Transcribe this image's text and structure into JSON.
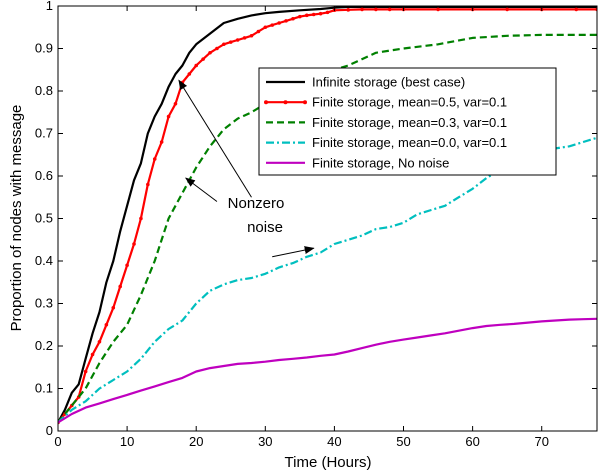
{
  "chart_data": {
    "type": "line",
    "xlabel": "Time (Hours)",
    "ylabel": "Proportion of nodes with message",
    "xlim": [
      0,
      78
    ],
    "ylim": [
      0,
      1
    ],
    "xticks": [
      "0",
      "10",
      "20",
      "30",
      "40",
      "50",
      "60",
      "70"
    ],
    "yticks": [
      "0",
      "0.1",
      "0.2",
      "0.3",
      "0.4",
      "0.5",
      "0.6",
      "0.7",
      "0.8",
      "0.9",
      "1"
    ],
    "grid": false,
    "legend_position": "upper-right-inside",
    "series": [
      {
        "name": "Infinite storage (best case)",
        "color": "#000000",
        "style": "solid",
        "marker": "none",
        "x": [
          0,
          1,
          2,
          3,
          4,
          5,
          6,
          7,
          8,
          9,
          10,
          11,
          12,
          13,
          14,
          15,
          16,
          17,
          18,
          19,
          20,
          22,
          24,
          26,
          28,
          30,
          32,
          35,
          38,
          40,
          42,
          45,
          50,
          55,
          60,
          65,
          70,
          78
        ],
        "y": [
          0.02,
          0.05,
          0.09,
          0.11,
          0.17,
          0.23,
          0.28,
          0.35,
          0.4,
          0.47,
          0.53,
          0.59,
          0.63,
          0.7,
          0.74,
          0.77,
          0.81,
          0.84,
          0.86,
          0.89,
          0.91,
          0.935,
          0.96,
          0.97,
          0.978,
          0.983,
          0.986,
          0.99,
          0.993,
          0.996,
          0.998,
          0.998,
          0.998,
          0.998,
          0.998,
          0.998,
          0.998,
          0.998
        ]
      },
      {
        "name": "Finite storage, mean=0.5, var=0.1",
        "color": "#ff0000",
        "style": "solid",
        "marker": "dot",
        "x": [
          0,
          1,
          2,
          3,
          4,
          5,
          6,
          7,
          8,
          9,
          10,
          11,
          12,
          13,
          14,
          15,
          16,
          17,
          18,
          19,
          20,
          21,
          22,
          23,
          24,
          25,
          26,
          27,
          28,
          29,
          30,
          31,
          32,
          33,
          34,
          35,
          36,
          37,
          38,
          39,
          40,
          42,
          44,
          46,
          48,
          50,
          55,
          60,
          65,
          70,
          75,
          78
        ],
        "y": [
          0.02,
          0.04,
          0.06,
          0.08,
          0.14,
          0.18,
          0.21,
          0.25,
          0.29,
          0.34,
          0.39,
          0.44,
          0.5,
          0.58,
          0.64,
          0.68,
          0.74,
          0.77,
          0.82,
          0.84,
          0.86,
          0.875,
          0.89,
          0.9,
          0.91,
          0.915,
          0.92,
          0.925,
          0.93,
          0.94,
          0.95,
          0.955,
          0.96,
          0.965,
          0.97,
          0.975,
          0.978,
          0.98,
          0.982,
          0.985,
          0.99,
          0.991,
          0.992,
          0.992,
          0.992,
          0.992,
          0.992,
          0.992,
          0.992,
          0.992,
          0.992,
          0.992
        ]
      },
      {
        "name": "Finite storage, mean=0.3, var=0.1",
        "color": "#008000",
        "style": "dashed",
        "marker": "none",
        "x": [
          0,
          2,
          4,
          6,
          8,
          10,
          12,
          14,
          16,
          18,
          20,
          22,
          24,
          26,
          28,
          30,
          32,
          34,
          36,
          38,
          40,
          42,
          44,
          46,
          48,
          50,
          55,
          60,
          65,
          70,
          75,
          78
        ],
        "y": [
          0.02,
          0.06,
          0.1,
          0.16,
          0.21,
          0.25,
          0.32,
          0.4,
          0.5,
          0.56,
          0.62,
          0.67,
          0.71,
          0.735,
          0.75,
          0.77,
          0.79,
          0.81,
          0.82,
          0.84,
          0.85,
          0.86,
          0.875,
          0.89,
          0.895,
          0.9,
          0.91,
          0.925,
          0.93,
          0.932,
          0.932,
          0.932
        ]
      },
      {
        "name": "Finite storage, mean=0.0, var=0.1",
        "color": "#00bfbf",
        "style": "dashdot",
        "marker": "none",
        "x": [
          0,
          2,
          4,
          6,
          8,
          10,
          12,
          14,
          16,
          18,
          20,
          22,
          24,
          26,
          28,
          30,
          32,
          34,
          36,
          38,
          40,
          42,
          44,
          46,
          48,
          50,
          52,
          54,
          56,
          58,
          60,
          62,
          64,
          66,
          68,
          70,
          72,
          74,
          76,
          78
        ],
        "y": [
          0.02,
          0.05,
          0.07,
          0.1,
          0.12,
          0.14,
          0.17,
          0.21,
          0.24,
          0.26,
          0.3,
          0.33,
          0.345,
          0.355,
          0.36,
          0.37,
          0.385,
          0.395,
          0.41,
          0.42,
          0.44,
          0.45,
          0.46,
          0.475,
          0.48,
          0.49,
          0.51,
          0.52,
          0.53,
          0.55,
          0.57,
          0.595,
          0.615,
          0.63,
          0.645,
          0.655,
          0.665,
          0.67,
          0.68,
          0.69
        ]
      },
      {
        "name": "Finite storage, No noise",
        "color": "#bf00bf",
        "style": "solid",
        "marker": "none",
        "x": [
          0,
          2,
          4,
          6,
          8,
          10,
          12,
          14,
          16,
          18,
          20,
          22,
          24,
          26,
          28,
          30,
          32,
          34,
          36,
          38,
          40,
          42,
          44,
          46,
          48,
          50,
          52,
          54,
          56,
          58,
          60,
          62,
          64,
          66,
          68,
          70,
          72,
          74,
          76,
          78
        ],
        "y": [
          0.02,
          0.04,
          0.055,
          0.065,
          0.075,
          0.085,
          0.095,
          0.105,
          0.115,
          0.125,
          0.14,
          0.148,
          0.153,
          0.158,
          0.16,
          0.163,
          0.167,
          0.17,
          0.173,
          0.177,
          0.18,
          0.187,
          0.195,
          0.203,
          0.21,
          0.215,
          0.22,
          0.225,
          0.23,
          0.236,
          0.242,
          0.247,
          0.25,
          0.252,
          0.255,
          0.258,
          0.26,
          0.262,
          0.263,
          0.264
        ]
      }
    ],
    "annotation": {
      "lines": [
        "Nonzero",
        "noise"
      ],
      "arrow_targets": [
        {
          "x": 17.5,
          "y": 0.825
        },
        {
          "x": 18.5,
          "y": 0.595
        },
        {
          "x": 37,
          "y": 0.43
        }
      ],
      "arrow_origins": [
        {
          "x": 28,
          "y": 0.55
        },
        {
          "x": 23,
          "y": 0.54
        },
        {
          "x": 31,
          "y": 0.41
        }
      ]
    }
  }
}
